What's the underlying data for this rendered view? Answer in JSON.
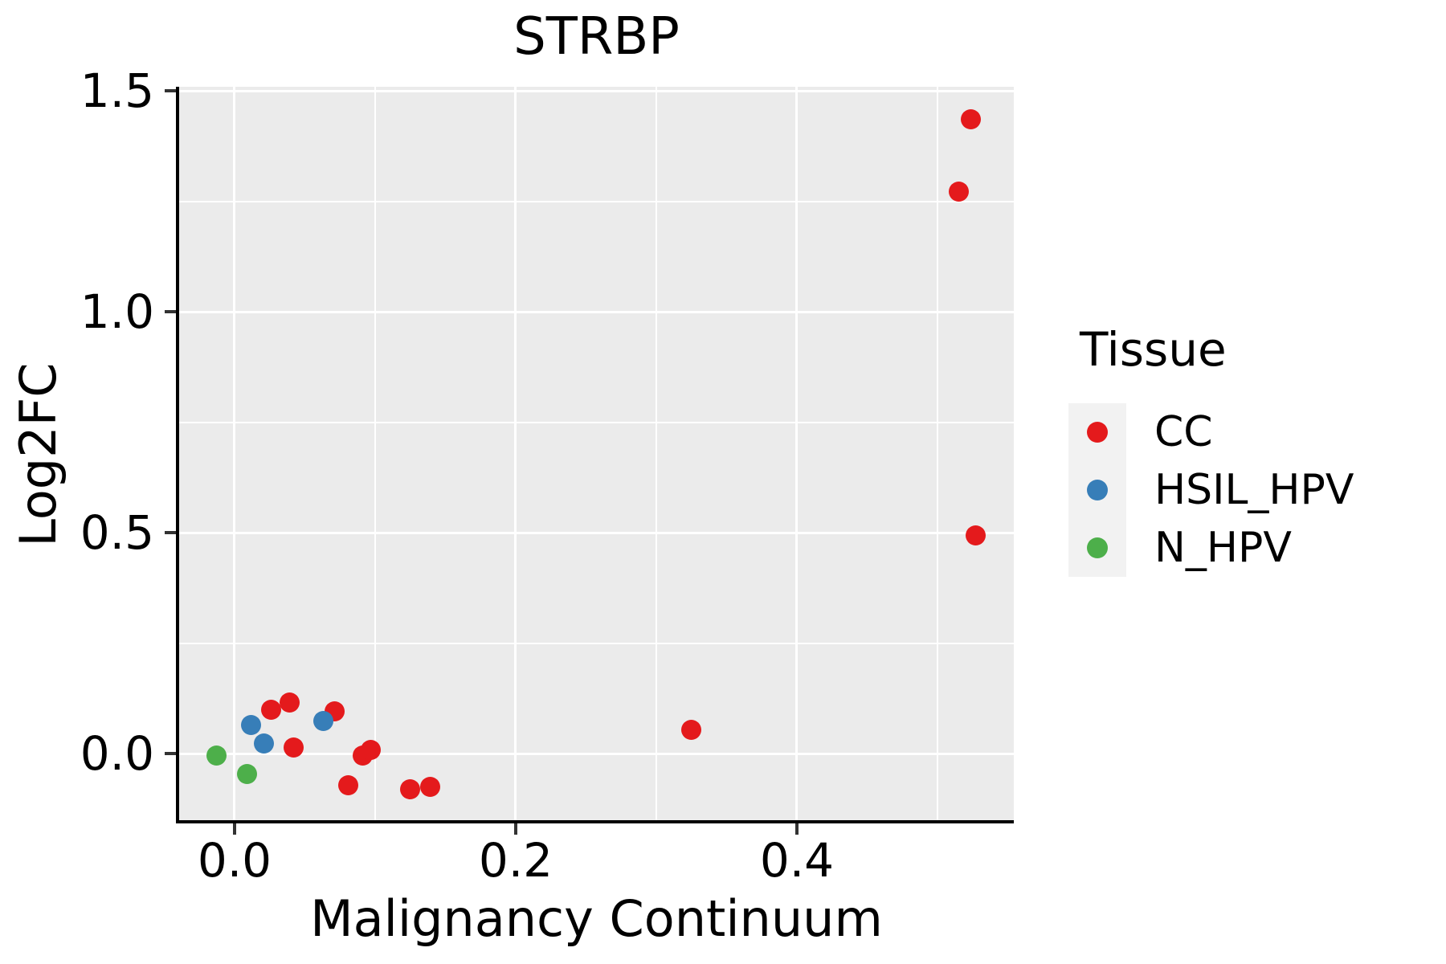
{
  "title": "STRBP",
  "chart_data": {
    "type": "scatter",
    "title": "STRBP",
    "xlabel": "Malignancy Continuum",
    "ylabel": "Log2FC",
    "xlim": [
      -0.0394,
      0.5543
    ],
    "ylim": [
      -0.1509,
      1.5091
    ],
    "x_major_ticks": [
      0.0,
      0.2,
      0.4
    ],
    "x_tick_labels": [
      "0.0",
      "0.2",
      "0.4"
    ],
    "x_minor_ticks": [
      0.1,
      0.3,
      0.5
    ],
    "y_major_ticks": [
      0.0,
      0.5,
      1.0,
      1.5
    ],
    "y_tick_labels": [
      "0.0",
      "0.5",
      "1.0",
      "1.5"
    ],
    "y_minor_ticks": [
      0.25,
      0.75,
      1.25
    ],
    "grid": "white major and minor gridlines on gray panel",
    "legend_position": "right",
    "series": [
      {
        "name": "CC",
        "color": "#E41A1C",
        "points": [
          [
            0.026,
            0.1
          ],
          [
            0.039,
            0.116
          ],
          [
            0.042,
            0.013
          ],
          [
            0.071,
            0.095
          ],
          [
            0.081,
            -0.071
          ],
          [
            0.091,
            -0.004
          ],
          [
            0.097,
            0.009
          ],
          [
            0.125,
            -0.08
          ],
          [
            0.139,
            -0.076
          ],
          [
            0.325,
            0.053
          ],
          [
            0.527,
            0.493
          ],
          [
            0.515,
            1.271
          ],
          [
            0.524,
            1.435
          ]
        ]
      },
      {
        "name": "HSIL_HPV",
        "color": "#377EB8",
        "points": [
          [
            0.012,
            0.065
          ],
          [
            0.021,
            0.022
          ],
          [
            0.063,
            0.073
          ]
        ]
      },
      {
        "name": "N_HPV",
        "color": "#4DAF4A",
        "points": [
          [
            -0.013,
            -0.004
          ],
          [
            0.009,
            -0.047
          ]
        ]
      }
    ]
  },
  "legend": {
    "title": "Tissue",
    "items": [
      {
        "label": "CC",
        "color": "#E41A1C"
      },
      {
        "label": "HSIL_HPV",
        "color": "#377EB8"
      },
      {
        "label": "N_HPV",
        "color": "#4DAF4A"
      }
    ]
  },
  "colors": {
    "panel_bg": "#EBEBEB",
    "grid": "#FFFFFF",
    "axis_line": "#000000",
    "tick_mark": "#333333",
    "text": "#000000",
    "legend_key_bg": "#F2F2F2"
  }
}
